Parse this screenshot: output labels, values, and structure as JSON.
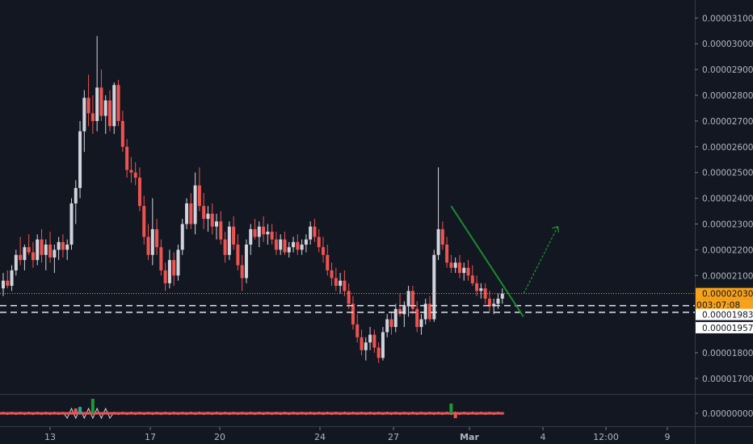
{
  "colors": {
    "background": "#131722",
    "up": "#d1d4dc",
    "down": "#ef5350",
    "price_line": "#f7a21b",
    "trendline": "#1b8a2e",
    "arrow": "#1b9a32",
    "grid_text": "#b2b5be",
    "separator": "#363a45"
  },
  "chart_data": {
    "type": "candlestick",
    "y_axis": {
      "min": 1.64e-05,
      "max": 3.17e-05,
      "tick_labels": [
        "0.00003100",
        "0.00003000",
        "0.00002900",
        "0.00002800",
        "0.00002700",
        "0.00002600",
        "0.00002500",
        "0.00002400",
        "0.00002300",
        "0.00002200",
        "0.00002100",
        "0.00001800",
        "0.00001700"
      ]
    },
    "x_axis": {
      "tick_labels": [
        {
          "text": "13",
          "bold": false
        },
        {
          "text": "17",
          "bold": false
        },
        {
          "text": "20",
          "bold": false
        },
        {
          "text": "24",
          "bold": false
        },
        {
          "text": "27",
          "bold": false
        },
        {
          "text": "Mar",
          "bold": true
        },
        {
          "text": "4",
          "bold": false
        },
        {
          "text": "12:00",
          "bold": false
        },
        {
          "text": "9",
          "bold": false
        }
      ]
    },
    "price_tags": {
      "last_price": "0.00002030",
      "countdown": "03:07:08",
      "partial_label": "0",
      "level_1": "0.00001983",
      "level_2": "0.00001957"
    },
    "horizontal_levels": [
      2.03e-05,
      1.983e-05,
      1.957e-05
    ],
    "candles": [
      [
        2.05e-05,
        2.11e-05,
        2.02e-05,
        2.08e-05
      ],
      [
        2.08e-05,
        2.12e-05,
        2.05e-05,
        2.06e-05
      ],
      [
        2.06e-05,
        2.14e-05,
        2.04e-05,
        2.12e-05
      ],
      [
        2.12e-05,
        2.2e-05,
        2.1e-05,
        2.18e-05
      ],
      [
        2.18e-05,
        2.25e-05,
        2.14e-05,
        2.16e-05
      ],
      [
        2.16e-05,
        2.22e-05,
        2.12e-05,
        2.21e-05
      ],
      [
        2.21e-05,
        2.26e-05,
        2.18e-05,
        2.19e-05
      ],
      [
        2.19e-05,
        2.23e-05,
        2.13e-05,
        2.16e-05
      ],
      [
        2.16e-05,
        2.26e-05,
        2.14e-05,
        2.24e-05
      ],
      [
        2.24e-05,
        2.28e-05,
        2.15e-05,
        2.18e-05
      ],
      [
        2.18e-05,
        2.24e-05,
        2.12e-05,
        2.22e-05
      ],
      [
        2.22e-05,
        2.27e-05,
        2.15e-05,
        2.17e-05
      ],
      [
        2.17e-05,
        2.22e-05,
        2.11e-05,
        2.2e-05
      ],
      [
        2.2e-05,
        2.25e-05,
        2.16e-05,
        2.23e-05
      ],
      [
        2.23e-05,
        2.26e-05,
        2.17e-05,
        2.2e-05
      ],
      [
        2.2e-05,
        2.24e-05,
        2.16e-05,
        2.22e-05
      ],
      [
        2.22e-05,
        2.4e-05,
        2.2e-05,
        2.38e-05
      ],
      [
        2.38e-05,
        2.47e-05,
        2.3e-05,
        2.44e-05
      ],
      [
        2.44e-05,
        2.7e-05,
        2.4e-05,
        2.66e-05
      ],
      [
        2.66e-05,
        2.82e-05,
        2.58e-05,
        2.79e-05
      ],
      [
        2.79e-05,
        2.88e-05,
        2.68e-05,
        2.73e-05
      ],
      [
        2.73e-05,
        2.8e-05,
        2.65e-05,
        2.7e-05
      ],
      [
        2.7e-05,
        3.03e-05,
        2.66e-05,
        2.83e-05
      ],
      [
        2.83e-05,
        2.9e-05,
        2.7e-05,
        2.72e-05
      ],
      [
        2.72e-05,
        2.8e-05,
        2.65e-05,
        2.78e-05
      ],
      [
        2.78e-05,
        2.82e-05,
        2.66e-05,
        2.68e-05
      ],
      [
        2.68e-05,
        2.85e-05,
        2.65e-05,
        2.84e-05
      ],
      [
        2.84e-05,
        2.86e-05,
        2.68e-05,
        2.7e-05
      ],
      [
        2.7e-05,
        2.74e-05,
        2.58e-05,
        2.6e-05
      ],
      [
        2.6e-05,
        2.63e-05,
        2.48e-05,
        2.51e-05
      ],
      [
        2.51e-05,
        2.56e-05,
        2.46e-05,
        2.5e-05
      ],
      [
        2.5e-05,
        2.54e-05,
        2.45e-05,
        2.48e-05
      ],
      [
        2.48e-05,
        2.52e-05,
        2.35e-05,
        2.37e-05
      ],
      [
        2.37e-05,
        2.41e-05,
        2.22e-05,
        2.25e-05
      ],
      [
        2.25e-05,
        2.3e-05,
        2.16e-05,
        2.18e-05
      ],
      [
        2.18e-05,
        2.4e-05,
        2.14e-05,
        2.28e-05
      ],
      [
        2.28e-05,
        2.32e-05,
        2.18e-05,
        2.21e-05
      ],
      [
        2.21e-05,
        2.24e-05,
        2.1e-05,
        2.12e-05
      ],
      [
        2.12e-05,
        2.15e-05,
        2.04e-05,
        2.07e-05
      ],
      [
        2.07e-05,
        2.2e-05,
        2.05e-05,
        2.16e-05
      ],
      [
        2.16e-05,
        2.19e-05,
        2.06e-05,
        2.1e-05
      ],
      [
        2.1e-05,
        2.22e-05,
        2.08e-05,
        2.2e-05
      ],
      [
        2.2e-05,
        2.32e-05,
        2.18e-05,
        2.3e-05
      ],
      [
        2.3e-05,
        2.4e-05,
        2.28e-05,
        2.38e-05
      ],
      [
        2.38e-05,
        2.42e-05,
        2.28e-05,
        2.3e-05
      ],
      [
        2.3e-05,
        2.5e-05,
        2.26e-05,
        2.45e-05
      ],
      [
        2.45e-05,
        2.52e-05,
        2.35e-05,
        2.37e-05
      ],
      [
        2.37e-05,
        2.42e-05,
        2.28e-05,
        2.32e-05
      ],
      [
        2.32e-05,
        2.37e-05,
        2.27e-05,
        2.34e-05
      ],
      [
        2.34e-05,
        2.38e-05,
        2.26e-05,
        2.29e-05
      ],
      [
        2.29e-05,
        2.34e-05,
        2.24e-05,
        2.31e-05
      ],
      [
        2.31e-05,
        2.35e-05,
        2.22e-05,
        2.24e-05
      ],
      [
        2.24e-05,
        2.27e-05,
        2.15e-05,
        2.18e-05
      ],
      [
        2.18e-05,
        2.31e-05,
        2.16e-05,
        2.29e-05
      ],
      [
        2.29e-05,
        2.33e-05,
        2.2e-05,
        2.22e-05
      ],
      [
        2.22e-05,
        2.26e-05,
        2.12e-05,
        2.14e-05
      ],
      [
        2.14e-05,
        2.18e-05,
        2.04e-05,
        2.09e-05
      ],
      [
        2.09e-05,
        2.24e-05,
        2.07e-05,
        2.22e-05
      ],
      [
        2.22e-05,
        2.3e-05,
        2.18e-05,
        2.28e-05
      ],
      [
        2.28e-05,
        2.32e-05,
        2.24e-05,
        2.25e-05
      ],
      [
        2.25e-05,
        2.31e-05,
        2.21e-05,
        2.29e-05
      ],
      [
        2.29e-05,
        2.33e-05,
        2.23e-05,
        2.26e-05
      ],
      [
        2.26e-05,
        2.3e-05,
        2.22e-05,
        2.27e-05
      ],
      [
        2.27e-05,
        2.3e-05,
        2.22e-05,
        2.24e-05
      ],
      [
        2.24e-05,
        2.27e-05,
        2.18e-05,
        2.2e-05
      ],
      [
        2.2e-05,
        2.26e-05,
        2.18e-05,
        2.24e-05
      ],
      [
        2.24e-05,
        2.27e-05,
        2.18e-05,
        2.19e-05
      ],
      [
        2.19e-05,
        2.23e-05,
        2.17e-05,
        2.21e-05
      ],
      [
        2.21e-05,
        2.25e-05,
        2.19e-05,
        2.23e-05
      ],
      [
        2.23e-05,
        2.26e-05,
        2.18e-05,
        2.2e-05
      ],
      [
        2.2e-05,
        2.24e-05,
        2.18e-05,
        2.22e-05
      ],
      [
        2.22e-05,
        2.26e-05,
        2.19e-05,
        2.24e-05
      ],
      [
        2.24e-05,
        2.31e-05,
        2.22e-05,
        2.29e-05
      ],
      [
        2.29e-05,
        2.32e-05,
        2.23e-05,
        2.25e-05
      ],
      [
        2.25e-05,
        2.28e-05,
        2.19e-05,
        2.21e-05
      ],
      [
        2.21e-05,
        2.25e-05,
        2.15e-05,
        2.18e-05
      ],
      [
        2.18e-05,
        2.22e-05,
        2.1e-05,
        2.12e-05
      ],
      [
        2.12e-05,
        2.15e-05,
        2.06e-05,
        2.09e-05
      ],
      [
        2.09e-05,
        2.13e-05,
        2.04e-05,
        2.06e-05
      ],
      [
        2.06e-05,
        2.11e-05,
        2.03e-05,
        2.08e-05
      ],
      [
        2.08e-05,
        2.12e-05,
        2.02e-05,
        2.04e-05
      ],
      [
        2.04e-05,
        2.07e-05,
        1.97e-05,
        1.99e-05
      ],
      [
        1.99e-05,
        2.02e-05,
        1.89e-05,
        1.91e-05
      ],
      [
        1.91e-05,
        1.95e-05,
        1.84e-05,
        1.86e-05
      ],
      [
        1.86e-05,
        1.89e-05,
        1.79e-05,
        1.81e-05
      ],
      [
        1.81e-05,
        1.86e-05,
        1.77e-05,
        1.84e-05
      ],
      [
        1.84e-05,
        1.9e-05,
        1.81e-05,
        1.87e-05
      ],
      [
        1.87e-05,
        1.89e-05,
        1.8e-05,
        1.82e-05
      ],
      [
        1.82e-05,
        1.84e-05,
        1.76e-05,
        1.78e-05
      ],
      [
        1.78e-05,
        1.9e-05,
        1.77e-05,
        1.88e-05
      ],
      [
        1.88e-05,
        1.95e-05,
        1.86e-05,
        1.93e-05
      ],
      [
        1.93e-05,
        1.96e-05,
        1.87e-05,
        1.9e-05
      ],
      [
        1.9e-05,
        1.99e-05,
        1.88e-05,
        1.97e-05
      ],
      [
        1.97e-05,
        2.03e-05,
        1.94e-05,
        1.95e-05
      ],
      [
        1.95e-05,
        2e-05,
        1.9e-05,
        1.98e-05
      ],
      [
        1.98e-05,
        2.06e-05,
        1.94e-05,
        2.04e-05
      ],
      [
        2.04e-05,
        2.06e-05,
        1.95e-05,
        1.97e-05
      ],
      [
        1.97e-05,
        2e-05,
        1.88e-05,
        1.9e-05
      ],
      [
        1.9e-05,
        1.95e-05,
        1.87e-05,
        1.93e-05
      ],
      [
        1.93e-05,
        2.01e-05,
        1.91e-05,
        1.99e-05
      ],
      [
        1.99e-05,
        2.02e-05,
        1.92e-05,
        1.93e-05
      ],
      [
        1.93e-05,
        2.2e-05,
        1.92e-05,
        2.18e-05
      ],
      [
        2.18e-05,
        2.52e-05,
        2.16e-05,
        2.28e-05
      ],
      [
        2.28e-05,
        2.31e-05,
        2.2e-05,
        2.22e-05
      ],
      [
        2.22e-05,
        2.25e-05,
        2.13e-05,
        2.15e-05
      ],
      [
        2.15e-05,
        2.18e-05,
        2.11e-05,
        2.13e-05
      ],
      [
        2.13e-05,
        2.17e-05,
        2.11e-05,
        2.15e-05
      ],
      [
        2.15e-05,
        2.18e-05,
        2.09e-05,
        2.11e-05
      ],
      [
        2.11e-05,
        2.15e-05,
        2.08e-05,
        2.13e-05
      ],
      [
        2.13e-05,
        2.16e-05,
        2.08e-05,
        2.1e-05
      ],
      [
        2.1e-05,
        2.14e-05,
        2.06e-05,
        2.07e-05
      ],
      [
        2.07e-05,
        2.1e-05,
        2.02e-05,
        2.04e-05
      ],
      [
        2.04e-05,
        2.07e-05,
        2.01e-05,
        2.05e-05
      ],
      [
        2.05e-05,
        2.07e-05,
        1.99e-05,
        2.01e-05
      ],
      [
        2.01e-05,
        2.04e-05,
        1.96e-05,
        1.98e-05
      ],
      [
        1.98e-05,
        2.01e-05,
        1.95e-05,
        1.99e-05
      ],
      [
        1.99e-05,
        2.03e-05,
        1.97e-05,
        2.01e-05
      ],
      [
        2.01e-05,
        2.05e-05,
        1.99e-05,
        2.03e-05
      ]
    ]
  }
}
